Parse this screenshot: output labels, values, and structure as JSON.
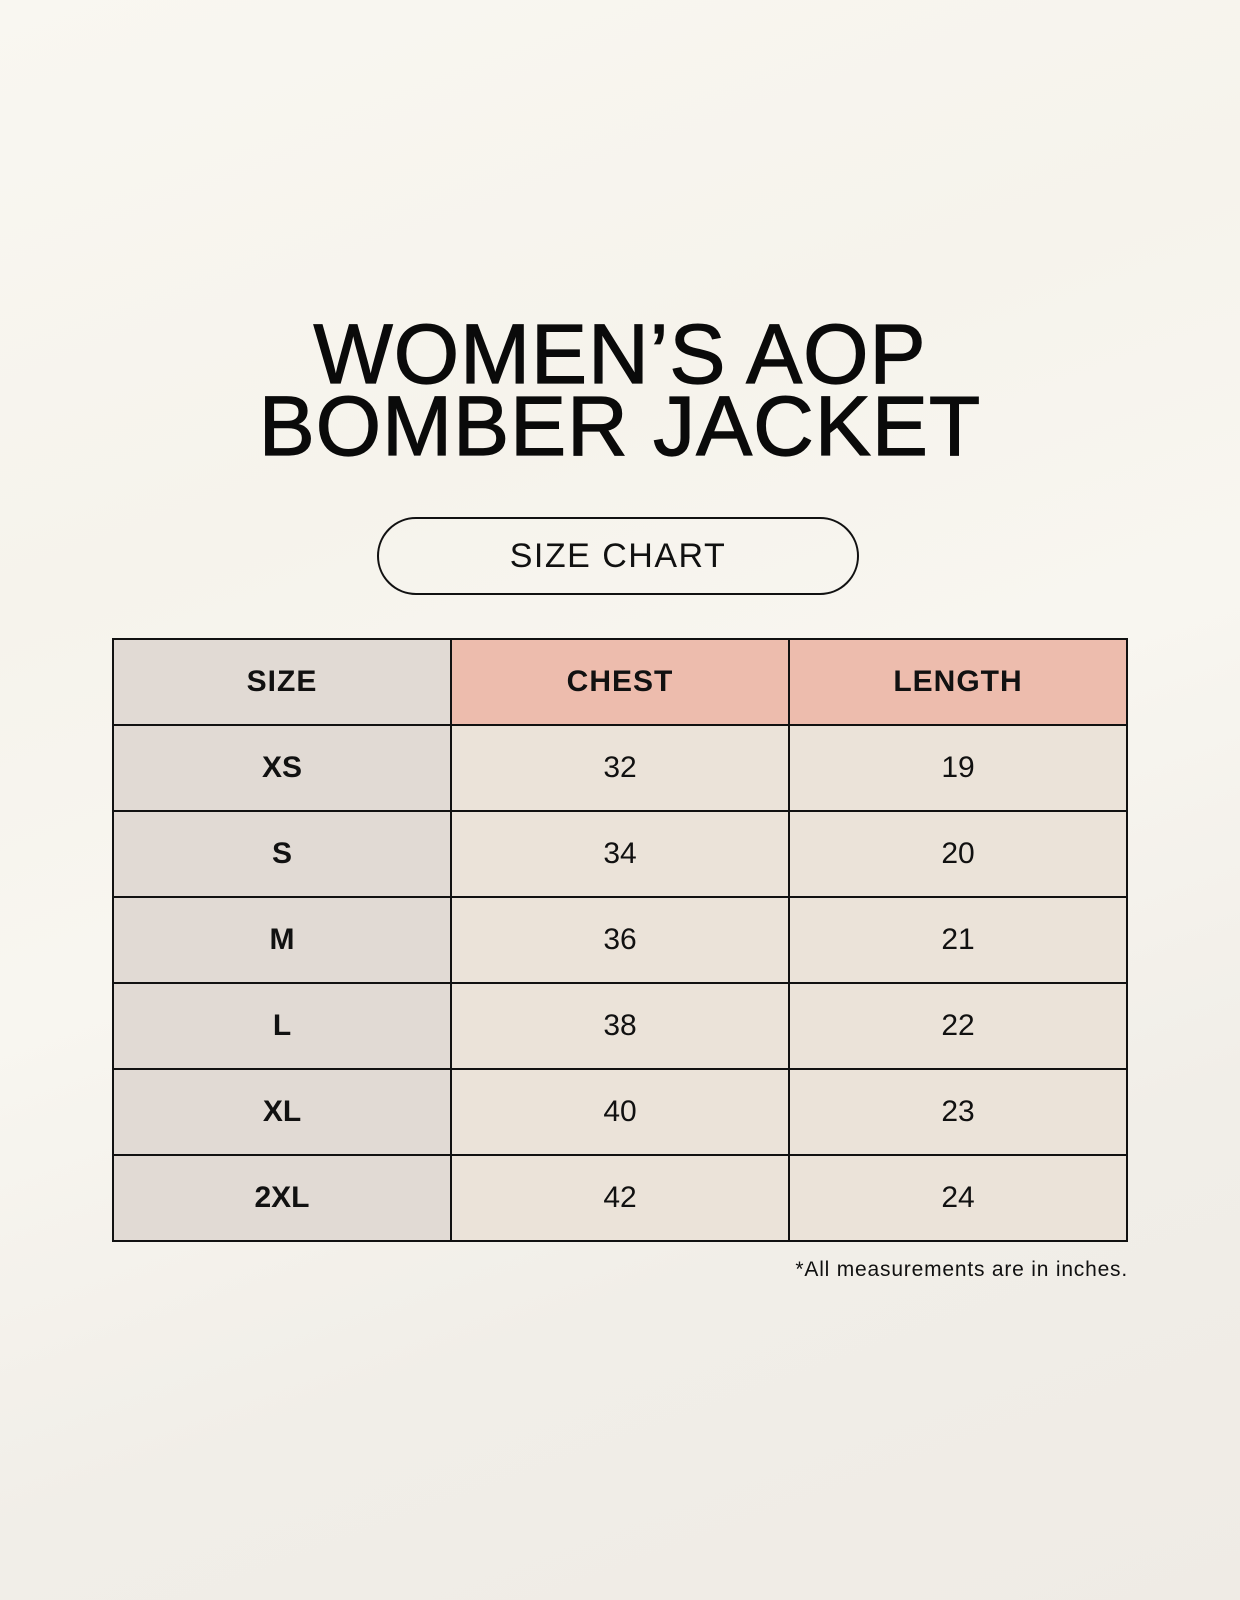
{
  "title_line1": "WOMEN’S AOP",
  "title_line2": "BOMBER JACKET",
  "subtitle": "SIZE CHART",
  "table": {
    "headers": [
      "SIZE",
      "CHEST",
      "LENGTH"
    ],
    "rows": [
      [
        "XS",
        "32",
        "19"
      ],
      [
        "S",
        "34",
        "20"
      ],
      [
        "M",
        "36",
        "21"
      ],
      [
        "L",
        "38",
        "22"
      ],
      [
        "XL",
        "40",
        "23"
      ],
      [
        "2XL",
        "42",
        "24"
      ]
    ]
  },
  "footnote": "*All measurements are in inches.",
  "colors": {
    "size_column": "#e1dad4",
    "header_accent": "#edbcad",
    "cell": "#ebe3d9"
  }
}
